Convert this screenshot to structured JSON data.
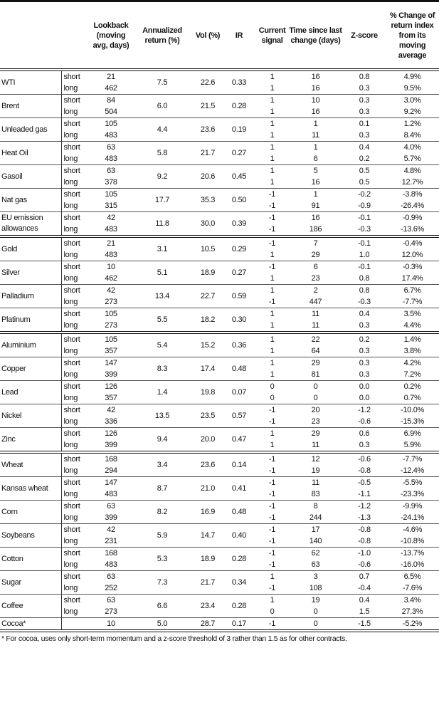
{
  "headers": [
    "",
    "",
    "Lookback (moving avg, days)",
    "Annualized return (%)",
    "Vol (%)",
    "IR",
    "Current signal",
    "Time since last change (days)",
    "Z-score",
    "% Change of return index from its moving average"
  ],
  "groups": [
    [
      {
        "name": "WTI",
        "ann": "7.5",
        "vol": "22.6",
        "ir": "0.33",
        "rows": [
          [
            "short",
            "21",
            "1",
            "16",
            "0.8",
            "4.9%"
          ],
          [
            "long",
            "462",
            "1",
            "16",
            "0.3",
            "9.5%"
          ]
        ]
      },
      {
        "name": "Brent",
        "ann": "6.0",
        "vol": "21.5",
        "ir": "0.28",
        "rows": [
          [
            "short",
            "84",
            "1",
            "10",
            "0.3",
            "3.0%"
          ],
          [
            "long",
            "504",
            "1",
            "16",
            "0.3",
            "9.2%"
          ]
        ]
      },
      {
        "name": "Unleaded gas",
        "ann": "4.4",
        "vol": "23.6",
        "ir": "0.19",
        "rows": [
          [
            "short",
            "105",
            "1",
            "1",
            "0.1",
            "1.2%"
          ],
          [
            "long",
            "483",
            "1",
            "11",
            "0.3",
            "8.4%"
          ]
        ]
      },
      {
        "name": "Heat Oil",
        "ann": "5.8",
        "vol": "21.7",
        "ir": "0.27",
        "rows": [
          [
            "short",
            "63",
            "1",
            "1",
            "0.4",
            "4.0%"
          ],
          [
            "long",
            "483",
            "1",
            "6",
            "0.2",
            "5.7%"
          ]
        ]
      },
      {
        "name": "Gasoil",
        "ann": "9.2",
        "vol": "20.6",
        "ir": "0.45",
        "rows": [
          [
            "short",
            "63",
            "1",
            "5",
            "0.5",
            "4.8%"
          ],
          [
            "long",
            "378",
            "1",
            "16",
            "0.5",
            "12.7%"
          ]
        ]
      },
      {
        "name": "Nat gas",
        "ann": "17.7",
        "vol": "35.3",
        "ir": "0.50",
        "rows": [
          [
            "short",
            "105",
            "-1",
            "1",
            "-0.2",
            "-3.8%"
          ],
          [
            "long",
            "315",
            "-1",
            "91",
            "-0.9",
            "-26.4%"
          ]
        ]
      },
      {
        "name": "EU emission allowances",
        "ann": "11.8",
        "vol": "30.0",
        "ir": "0.39",
        "rows": [
          [
            "short",
            "42",
            "-1",
            "16",
            "-0.1",
            "-0.9%"
          ],
          [
            "long",
            "483",
            "-1",
            "186",
            "-0.3",
            "-13.6%"
          ]
        ]
      }
    ],
    [
      {
        "name": "Gold",
        "ann": "3.1",
        "vol": "10.5",
        "ir": "0.29",
        "rows": [
          [
            "short",
            "21",
            "-1",
            "7",
            "-0.1",
            "-0.4%"
          ],
          [
            "long",
            "483",
            "1",
            "29",
            "1.0",
            "12.0%"
          ]
        ]
      },
      {
        "name": "Silver",
        "ann": "5.1",
        "vol": "18.9",
        "ir": "0.27",
        "rows": [
          [
            "short",
            "10",
            "-1",
            "6",
            "-0.1",
            "-0.3%"
          ],
          [
            "long",
            "462",
            "1",
            "23",
            "0.8",
            "17.4%"
          ]
        ]
      },
      {
        "name": "Palladium",
        "ann": "13.4",
        "vol": "22.7",
        "ir": "0.59",
        "rows": [
          [
            "short",
            "42",
            "1",
            "2",
            "0.8",
            "6.7%"
          ],
          [
            "long",
            "273",
            "-1",
            "447",
            "-0.3",
            "-7.7%"
          ]
        ]
      },
      {
        "name": "Platinum",
        "ann": "5.5",
        "vol": "18.2",
        "ir": "0.30",
        "rows": [
          [
            "short",
            "105",
            "1",
            "11",
            "0.4",
            "3.5%"
          ],
          [
            "long",
            "273",
            "1",
            "11",
            "0.3",
            "4.4%"
          ]
        ]
      }
    ],
    [
      {
        "name": "Aluminium",
        "ann": "5.4",
        "vol": "15.2",
        "ir": "0.36",
        "rows": [
          [
            "short",
            "105",
            "1",
            "22",
            "0.2",
            "1.4%"
          ],
          [
            "long",
            "357",
            "1",
            "64",
            "0.3",
            "3.8%"
          ]
        ]
      },
      {
        "name": "Copper",
        "ann": "8.3",
        "vol": "17.4",
        "ir": "0.48",
        "rows": [
          [
            "short",
            "147",
            "1",
            "29",
            "0.3",
            "4.2%"
          ],
          [
            "long",
            "399",
            "1",
            "81",
            "0.3",
            "7.2%"
          ]
        ]
      },
      {
        "name": "Lead",
        "ann": "1.4",
        "vol": "19.8",
        "ir": "0.07",
        "rows": [
          [
            "short",
            "126",
            "0",
            "0",
            "0.0",
            "0.2%"
          ],
          [
            "long",
            "357",
            "0",
            "0",
            "0.0",
            "0.7%"
          ]
        ]
      },
      {
        "name": "Nickel",
        "ann": "13.5",
        "vol": "23.5",
        "ir": "0.57",
        "rows": [
          [
            "short",
            "42",
            "-1",
            "20",
            "-1.2",
            "-10.0%"
          ],
          [
            "long",
            "336",
            "-1",
            "23",
            "-0.6",
            "-15.3%"
          ]
        ]
      },
      {
        "name": "Zinc",
        "ann": "9.4",
        "vol": "20.0",
        "ir": "0.47",
        "rows": [
          [
            "short",
            "126",
            "1",
            "29",
            "0.6",
            "6.9%"
          ],
          [
            "long",
            "399",
            "1",
            "11",
            "0.3",
            "5.9%"
          ]
        ]
      }
    ],
    [
      {
        "name": "Wheat",
        "ann": "3.4",
        "vol": "23.6",
        "ir": "0.14",
        "rows": [
          [
            "short",
            "168",
            "-1",
            "12",
            "-0.6",
            "-7.7%"
          ],
          [
            "long",
            "294",
            "-1",
            "19",
            "-0.8",
            "-12.4%"
          ]
        ]
      },
      {
        "name": "Kansas wheat",
        "ann": "8.7",
        "vol": "21.0",
        "ir": "0.41",
        "rows": [
          [
            "short",
            "147",
            "-1",
            "11",
            "-0.5",
            "-5.5%"
          ],
          [
            "long",
            "483",
            "-1",
            "83",
            "-1.1",
            "-23.3%"
          ]
        ]
      },
      {
        "name": "Corn",
        "ann": "8.2",
        "vol": "16.9",
        "ir": "0.48",
        "rows": [
          [
            "short",
            "63",
            "-1",
            "8",
            "-1.2",
            "-9.9%"
          ],
          [
            "long",
            "399",
            "-1",
            "244",
            "-1.3",
            "-24.1%"
          ]
        ]
      },
      {
        "name": "Soybeans",
        "ann": "5.9",
        "vol": "14.7",
        "ir": "0.40",
        "rows": [
          [
            "short",
            "42",
            "-1",
            "17",
            "-0.8",
            "-4.6%"
          ],
          [
            "long",
            "231",
            "-1",
            "140",
            "-0.8",
            "-10.8%"
          ]
        ]
      },
      {
        "name": "Cotton",
        "ann": "5.3",
        "vol": "18.9",
        "ir": "0.28",
        "rows": [
          [
            "short",
            "168",
            "-1",
            "62",
            "-1.0",
            "-13.7%"
          ],
          [
            "long",
            "483",
            "-1",
            "63",
            "-0.6",
            "-16.0%"
          ]
        ]
      },
      {
        "name": "Sugar",
        "ann": "7.3",
        "vol": "21.7",
        "ir": "0.34",
        "rows": [
          [
            "short",
            "63",
            "1",
            "3",
            "0.7",
            "6.5%"
          ],
          [
            "long",
            "252",
            "-1",
            "108",
            "-0.4",
            "-7.6%"
          ]
        ]
      },
      {
        "name": "Coffee",
        "ann": "6.6",
        "vol": "23.4",
        "ir": "0.28",
        "rows": [
          [
            "short",
            "63",
            "1",
            "19",
            "0.4",
            "3.4%"
          ],
          [
            "long",
            "273",
            "0",
            "0",
            "1.5",
            "27.3%"
          ]
        ]
      },
      {
        "name": "Cocoa*",
        "ann": "5.0",
        "vol": "28.7",
        "ir": "0.17",
        "rows": [
          [
            "",
            "10",
            "-1",
            "0",
            "-1.5",
            "-5.2%"
          ]
        ]
      }
    ]
  ],
  "footnote": "* For cocoa, uses only short-term momentum and a z-score threshold of 3 rather than 1.5 as for other contracts."
}
